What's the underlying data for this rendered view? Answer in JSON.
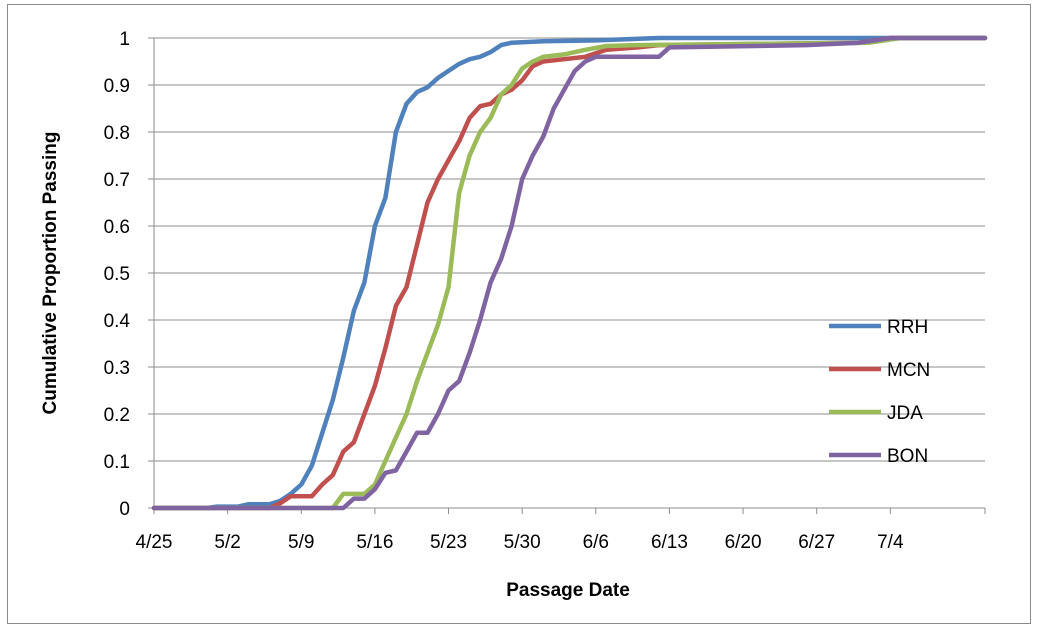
{
  "chart_data": {
    "type": "line",
    "title": "",
    "xlabel": "Passage Date",
    "ylabel": "Cumulative Proportion Passing",
    "x_tick_labels": [
      "4/25",
      "5/2",
      "5/9",
      "5/16",
      "5/23",
      "5/30",
      "6/6",
      "6/13",
      "6/20",
      "6/27",
      "7/4"
    ],
    "y_tick_labels": [
      "0",
      "0.1",
      "0.2",
      "0.3",
      "0.4",
      "0.5",
      "0.6",
      "0.7",
      "0.8",
      "0.9",
      "1"
    ],
    "xlim": [
      "2014-04-25",
      "2014-07-13"
    ],
    "ylim": [
      0,
      1
    ],
    "grid": "horizontal major gridlines",
    "legend_position": "right",
    "series": [
      {
        "name": "RRH",
        "color": "#4f81bd",
        "points": [
          [
            "4/25",
            0
          ],
          [
            "4/30",
            0
          ],
          [
            "5/1",
            0.003
          ],
          [
            "5/3",
            0.003
          ],
          [
            "5/4",
            0.008
          ],
          [
            "5/6",
            0.008
          ],
          [
            "5/7",
            0.015
          ],
          [
            "5/8",
            0.03
          ],
          [
            "5/9",
            0.05
          ],
          [
            "5/10",
            0.09
          ],
          [
            "5/11",
            0.16
          ],
          [
            "5/12",
            0.23
          ],
          [
            "5/13",
            0.32
          ],
          [
            "5/14",
            0.42
          ],
          [
            "5/15",
            0.48
          ],
          [
            "5/16",
            0.6
          ],
          [
            "5/17",
            0.66
          ],
          [
            "5/18",
            0.8
          ],
          [
            "5/19",
            0.86
          ],
          [
            "5/20",
            0.885
          ],
          [
            "5/21",
            0.895
          ],
          [
            "5/22",
            0.915
          ],
          [
            "5/23",
            0.93
          ],
          [
            "5/24",
            0.945
          ],
          [
            "5/25",
            0.955
          ],
          [
            "5/26",
            0.96
          ],
          [
            "5/27",
            0.97
          ],
          [
            "5/28",
            0.985
          ],
          [
            "5/29",
            0.99
          ],
          [
            "6/1",
            0.993
          ],
          [
            "6/6",
            0.995
          ],
          [
            "6/12",
            1
          ],
          [
            "7/13",
            1
          ]
        ]
      },
      {
        "name": "MCN",
        "color": "#c0504d",
        "points": [
          [
            "4/25",
            0
          ],
          [
            "5/6",
            0
          ],
          [
            "5/7",
            0.01
          ],
          [
            "5/8",
            0.025
          ],
          [
            "5/10",
            0.025
          ],
          [
            "5/11",
            0.05
          ],
          [
            "5/12",
            0.07
          ],
          [
            "5/13",
            0.12
          ],
          [
            "5/14",
            0.14
          ],
          [
            "5/15",
            0.2
          ],
          [
            "5/16",
            0.26
          ],
          [
            "5/17",
            0.34
          ],
          [
            "5/18",
            0.43
          ],
          [
            "5/19",
            0.47
          ],
          [
            "5/20",
            0.56
          ],
          [
            "5/21",
            0.65
          ],
          [
            "5/22",
            0.7
          ],
          [
            "5/23",
            0.74
          ],
          [
            "5/24",
            0.78
          ],
          [
            "5/25",
            0.83
          ],
          [
            "5/26",
            0.855
          ],
          [
            "5/27",
            0.86
          ],
          [
            "5/28",
            0.88
          ],
          [
            "5/29",
            0.89
          ],
          [
            "5/30",
            0.91
          ],
          [
            "5/31",
            0.94
          ],
          [
            "6/1",
            0.95
          ],
          [
            "6/5",
            0.96
          ],
          [
            "6/7",
            0.975
          ],
          [
            "6/10",
            0.98
          ],
          [
            "6/12",
            0.985
          ],
          [
            "7/1",
            0.99
          ],
          [
            "7/4",
            1
          ],
          [
            "7/13",
            1
          ]
        ]
      },
      {
        "name": "JDA",
        "color": "#9bbb59",
        "points": [
          [
            "4/25",
            0
          ],
          [
            "5/12",
            0
          ],
          [
            "5/13",
            0.03
          ],
          [
            "5/15",
            0.03
          ],
          [
            "5/16",
            0.05
          ],
          [
            "5/17",
            0.1
          ],
          [
            "5/18",
            0.15
          ],
          [
            "5/19",
            0.2
          ],
          [
            "5/20",
            0.27
          ],
          [
            "5/21",
            0.33
          ],
          [
            "5/22",
            0.39
          ],
          [
            "5/23",
            0.47
          ],
          [
            "5/24",
            0.67
          ],
          [
            "5/25",
            0.75
          ],
          [
            "5/26",
            0.8
          ],
          [
            "5/27",
            0.83
          ],
          [
            "5/28",
            0.88
          ],
          [
            "5/29",
            0.9
          ],
          [
            "5/30",
            0.935
          ],
          [
            "5/31",
            0.95
          ],
          [
            "6/1",
            0.96
          ],
          [
            "6/3",
            0.965
          ],
          [
            "6/5",
            0.975
          ],
          [
            "6/7",
            0.983
          ],
          [
            "6/10",
            0.985
          ],
          [
            "7/2",
            0.99
          ],
          [
            "7/5",
            1
          ],
          [
            "7/13",
            1
          ]
        ]
      },
      {
        "name": "BON",
        "color": "#8064a2",
        "points": [
          [
            "4/25",
            0
          ],
          [
            "5/13",
            0
          ],
          [
            "5/14",
            0.02
          ],
          [
            "5/15",
            0.02
          ],
          [
            "5/16",
            0.04
          ],
          [
            "5/17",
            0.075
          ],
          [
            "5/18",
            0.08
          ],
          [
            "5/19",
            0.12
          ],
          [
            "5/20",
            0.16
          ],
          [
            "5/21",
            0.16
          ],
          [
            "5/22",
            0.2
          ],
          [
            "5/23",
            0.25
          ],
          [
            "5/24",
            0.27
          ],
          [
            "5/25",
            0.33
          ],
          [
            "5/26",
            0.4
          ],
          [
            "5/27",
            0.48
          ],
          [
            "5/28",
            0.53
          ],
          [
            "5/29",
            0.6
          ],
          [
            "5/30",
            0.7
          ],
          [
            "5/31",
            0.75
          ],
          [
            "6/1",
            0.79
          ],
          [
            "6/2",
            0.85
          ],
          [
            "6/3",
            0.89
          ],
          [
            "6/4",
            0.93
          ],
          [
            "6/5",
            0.95
          ],
          [
            "6/6",
            0.96
          ],
          [
            "6/12",
            0.96
          ],
          [
            "6/13",
            0.98
          ],
          [
            "6/26",
            0.985
          ],
          [
            "7/1",
            0.99
          ],
          [
            "7/4",
            1
          ],
          [
            "7/13",
            1
          ]
        ]
      }
    ]
  }
}
